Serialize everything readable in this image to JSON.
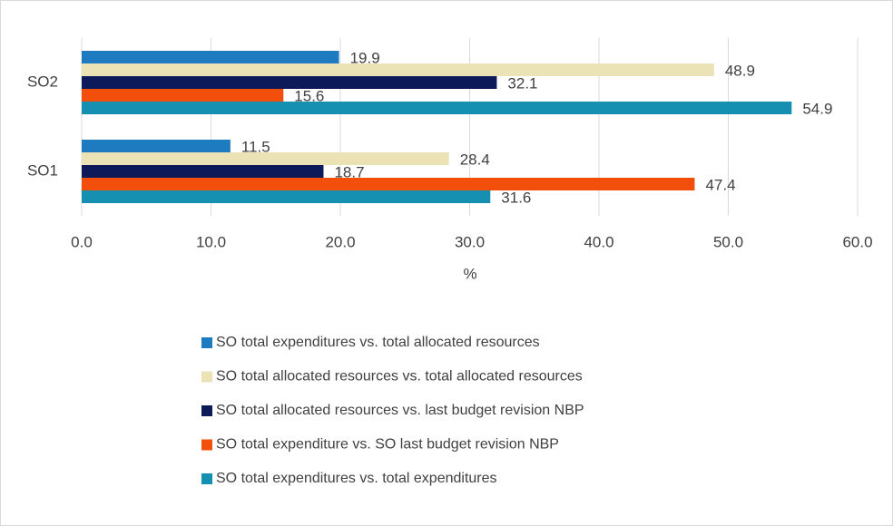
{
  "chart_data": {
    "type": "bar",
    "orientation": "horizontal",
    "categories": [
      "SO2",
      "SO1"
    ],
    "series": [
      {
        "name": "SO total expenditures vs. total allocated resources",
        "color": "#1f7bbf",
        "values": [
          19.9,
          11.5
        ]
      },
      {
        "name": "SO total allocated resources vs. total allocated resources",
        "color": "#ebe3b5",
        "values": [
          48.9,
          28.4
        ]
      },
      {
        "name": "SO total allocated resources vs. last budget revision NBP",
        "color": "#0c1a5a",
        "values": [
          32.1,
          18.7
        ]
      },
      {
        "name": "SO total expenditure vs. SO last budget revision NBP",
        "color": "#f24e0c",
        "values": [
          15.6,
          47.4
        ]
      },
      {
        "name": "SO total expenditures vs. total expenditures",
        "color": "#1690b0",
        "values": [
          54.9,
          31.6
        ]
      }
    ],
    "x_label": "%",
    "xlim": [
      0,
      60
    ],
    "xticks": [
      {
        "value": 0,
        "label": "0.0"
      },
      {
        "value": 10,
        "label": "10.0"
      },
      {
        "value": 20,
        "label": "20.0"
      },
      {
        "value": 30,
        "label": "30.0"
      },
      {
        "value": 40,
        "label": "40.0"
      },
      {
        "value": 50,
        "label": "50.0"
      },
      {
        "value": 60,
        "label": "60.0"
      }
    ],
    "grid": true,
    "legend": "bottom"
  }
}
